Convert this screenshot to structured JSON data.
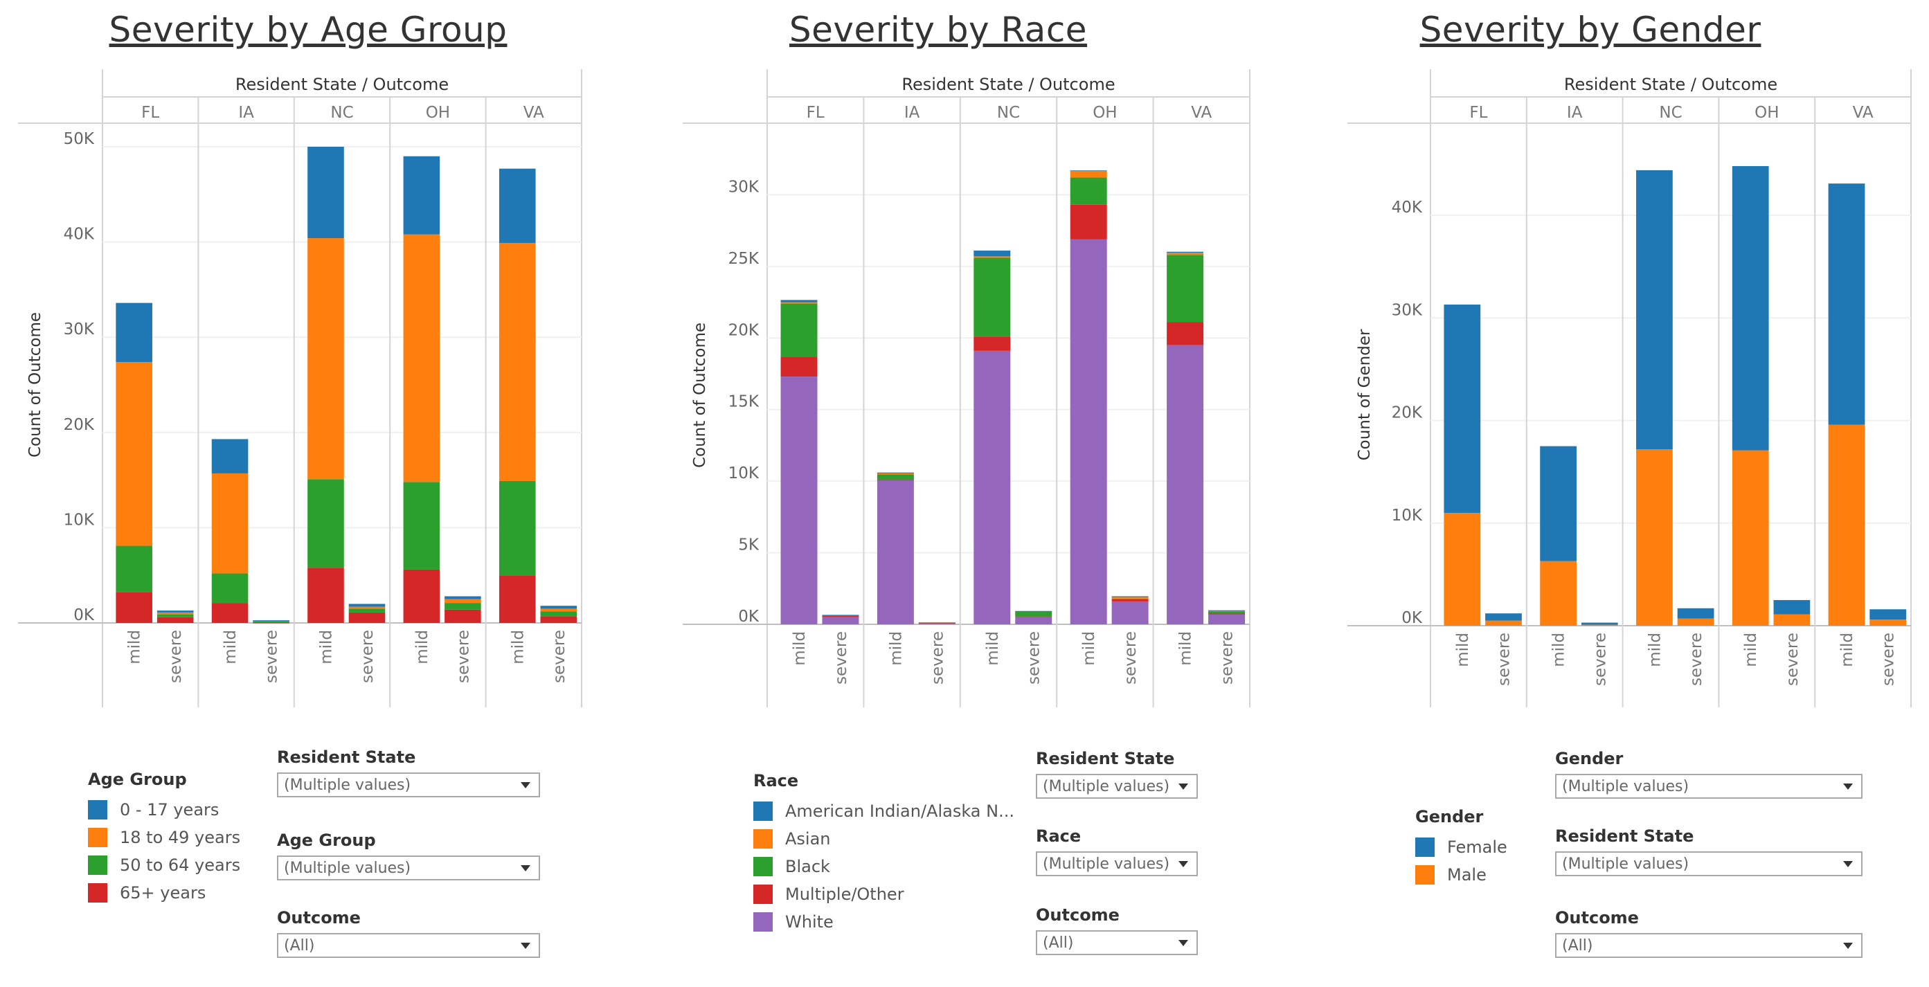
{
  "dashboards": [
    {
      "title": "Severity by Age Group",
      "legend": {
        "title": "Age Group",
        "items": [
          {
            "label": "0 - 17 years",
            "color": "#1f77b4"
          },
          {
            "label": "18 to 49 years",
            "color": "#ff7f0e"
          },
          {
            "label": "50 to 64 years",
            "color": "#2ca02c"
          },
          {
            "label": "65+ years",
            "color": "#d62728"
          }
        ]
      },
      "filters": [
        {
          "label": "Resident State",
          "value": "(Multiple values)"
        },
        {
          "label": "Age Group",
          "value": "(Multiple values)"
        },
        {
          "label": "Outcome",
          "value": "(All)"
        }
      ]
    },
    {
      "title": "Severity by Race",
      "legend": {
        "title": "Race",
        "items": [
          {
            "label": "American Indian/Alaska N...",
            "color": "#1f77b4"
          },
          {
            "label": "Asian",
            "color": "#ff7f0e"
          },
          {
            "label": "Black",
            "color": "#2ca02c"
          },
          {
            "label": "Multiple/Other",
            "color": "#d62728"
          },
          {
            "label": "White",
            "color": "#9467bd"
          }
        ]
      },
      "filters": [
        {
          "label": "Resident State",
          "value": "(Multiple values)"
        },
        {
          "label": "Race",
          "value": "(Multiple values)"
        },
        {
          "label": "Outcome",
          "value": "(All)"
        }
      ]
    },
    {
      "title": "Severity by Gender",
      "legend": {
        "title": "Gender",
        "items": [
          {
            "label": "Female",
            "color": "#1f77b4"
          },
          {
            "label": "Male",
            "color": "#ff7f0e"
          }
        ]
      },
      "filters": [
        {
          "label": "Gender",
          "value": "(Multiple values)"
        },
        {
          "label": "Resident State",
          "value": "(Multiple values)"
        },
        {
          "label": "Outcome",
          "value": "(All)"
        }
      ]
    }
  ],
  "chart_data": [
    {
      "type": "bar",
      "stacked": true,
      "title": "Severity by Age Group",
      "column_header": "Resident State / Outcome",
      "ylabel": "Count of Outcome",
      "groups": [
        "FL",
        "IA",
        "NC",
        "OH",
        "VA"
      ],
      "outcomes": [
        "mild",
        "severe"
      ],
      "ylim": [
        0,
        50000
      ],
      "yticks": [
        {
          "v": 0,
          "label": "0K"
        },
        {
          "v": 10000,
          "label": "10K"
        },
        {
          "v": 20000,
          "label": "20K"
        },
        {
          "v": 30000,
          "label": "30K"
        },
        {
          "v": 40000,
          "label": "40K"
        },
        {
          "v": 50000,
          "label": "50K"
        }
      ],
      "series": [
        {
          "name": "65+ years",
          "color": "#d62728",
          "values": [
            [
              3200,
              600
            ],
            [
              2100,
              40
            ],
            [
              5800,
              1100
            ],
            [
              5600,
              1400
            ],
            [
              5000,
              700
            ]
          ]
        },
        {
          "name": "50 to 64 years",
          "color": "#2ca02c",
          "values": [
            [
              4900,
              300
            ],
            [
              3100,
              160
            ],
            [
              9300,
              400
            ],
            [
              9200,
              700
            ],
            [
              9900,
              500
            ]
          ]
        },
        {
          "name": "18 to 49 years",
          "color": "#ff7f0e",
          "values": [
            [
              19300,
              200
            ],
            [
              10500,
              40
            ],
            [
              25300,
              200
            ],
            [
              26000,
              400
            ],
            [
              25000,
              300
            ]
          ]
        },
        {
          "name": "0 - 17 years",
          "color": "#1f77b4",
          "values": [
            [
              6200,
              200
            ],
            [
              3600,
              40
            ],
            [
              9600,
              300
            ],
            [
              8200,
              300
            ],
            [
              7800,
              300
            ]
          ]
        }
      ],
      "grid": true
    },
    {
      "type": "bar",
      "stacked": true,
      "title": "Severity by Race",
      "column_header": "Resident State / Outcome",
      "ylabel": "Count of Outcome",
      "groups": [
        "FL",
        "IA",
        "NC",
        "OH",
        "VA"
      ],
      "outcomes": [
        "mild",
        "severe"
      ],
      "ylim": [
        0,
        32000
      ],
      "yticks": [
        {
          "v": 0,
          "label": "0K"
        },
        {
          "v": 5000,
          "label": "5K"
        },
        {
          "v": 10000,
          "label": "10K"
        },
        {
          "v": 15000,
          "label": "15K"
        },
        {
          "v": 20000,
          "label": "20K"
        },
        {
          "v": 25000,
          "label": "25K"
        },
        {
          "v": 30000,
          "label": "30K"
        }
      ],
      "series": [
        {
          "name": "White",
          "color": "#9467bd",
          "values": [
            [
              17300,
              500
            ],
            [
              10100,
              100
            ],
            [
              19100,
              500
            ],
            [
              26900,
              1600
            ],
            [
              19500,
              700
            ]
          ]
        },
        {
          "name": "Multiple/Other",
          "color": "#d62728",
          "values": [
            [
              1400,
              100
            ],
            [
              20,
              20
            ],
            [
              1000,
              50
            ],
            [
              2400,
              150
            ],
            [
              1600,
              50
            ]
          ]
        },
        {
          "name": "Black",
          "color": "#2ca02c",
          "values": [
            [
              3700,
              30
            ],
            [
              350,
              20
            ],
            [
              5500,
              350
            ],
            [
              1900,
              50
            ],
            [
              4700,
              150
            ]
          ]
        },
        {
          "name": "Asian",
          "color": "#ff7f0e",
          "values": [
            [
              100,
              20
            ],
            [
              120,
              10
            ],
            [
              100,
              20
            ],
            [
              450,
              150
            ],
            [
              150,
              70
            ]
          ]
        },
        {
          "name": "American Indian/Alaska N...",
          "color": "#1f77b4",
          "values": [
            [
              150,
              10
            ],
            [
              10,
              0
            ],
            [
              400,
              10
            ],
            [
              50,
              10
            ],
            [
              70,
              10
            ]
          ]
        }
      ],
      "grid": true
    },
    {
      "type": "bar",
      "stacked": true,
      "title": "Severity by Gender",
      "column_header": "Resident State / Outcome",
      "ylabel": "Count of Gender",
      "groups": [
        "FL",
        "IA",
        "NC",
        "OH",
        "VA"
      ],
      "outcomes": [
        "mild",
        "severe"
      ],
      "ylim": [
        0,
        45000
      ],
      "yticks": [
        {
          "v": 0,
          "label": "0K"
        },
        {
          "v": 10000,
          "label": "10K"
        },
        {
          "v": 20000,
          "label": "20K"
        },
        {
          "v": 30000,
          "label": "30K"
        },
        {
          "v": 40000,
          "label": "40K"
        }
      ],
      "series": [
        {
          "name": "Male",
          "color": "#ff7f0e",
          "values": [
            [
              11000,
              500
            ],
            [
              6300,
              100
            ],
            [
              17200,
              700
            ],
            [
              17100,
              1100
            ],
            [
              19600,
              600
            ]
          ]
        },
        {
          "name": "Female",
          "color": "#1f77b4",
          "values": [
            [
              20300,
              700
            ],
            [
              11200,
              200
            ],
            [
              27200,
              1000
            ],
            [
              27700,
              1400
            ],
            [
              23500,
              1000
            ]
          ]
        }
      ],
      "grid": true
    }
  ]
}
